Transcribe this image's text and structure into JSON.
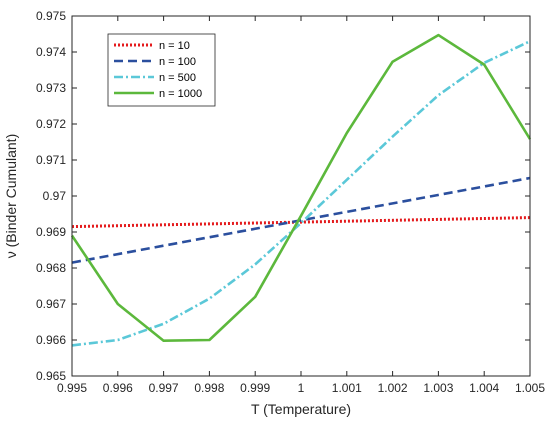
{
  "chart_data": {
    "type": "line",
    "xlabel": "T (Temperature)",
    "ylabel": "ν (Binder Cumulant)",
    "xlim": [
      0.995,
      1.005
    ],
    "ylim": [
      0.965,
      0.975
    ],
    "x_ticks": [
      0.995,
      0.996,
      0.997,
      0.998,
      0.999,
      1,
      1.001,
      1.002,
      1.003,
      1.004,
      1.005
    ],
    "x_tick_labels": [
      "0.995",
      "0.996",
      "0.997",
      "0.998",
      "0.999",
      "1",
      "1.001",
      "1.002",
      "1.003",
      "1.004",
      "1.005"
    ],
    "y_ticks": [
      0.965,
      0.966,
      0.967,
      0.968,
      0.969,
      0.97,
      0.971,
      0.972,
      0.973,
      0.974,
      0.975
    ],
    "y_tick_labels": [
      "0.965",
      "0.966",
      "0.967",
      "0.968",
      "0.969",
      "0.97",
      "0.971",
      "0.972",
      "0.973",
      "0.974",
      "0.975"
    ],
    "grid": false,
    "legend_position": "top-left",
    "series": [
      {
        "name": "n = 10",
        "color": "#e41a1c",
        "style": "dotted",
        "x": [
          0.995,
          1.005
        ],
        "y": [
          0.96915,
          0.9694
        ]
      },
      {
        "name": "n = 100",
        "color": "#2b4f9e",
        "style": "dashed",
        "x": [
          0.995,
          1.005
        ],
        "y": [
          0.96815,
          0.9705
        ]
      },
      {
        "name": "n = 500",
        "color": "#5bc8d8",
        "style": "dashdot",
        "x": [
          0.995,
          0.996,
          0.997,
          0.998,
          0.999,
          1.0,
          1.001,
          1.002,
          1.003,
          1.004,
          1.005
        ],
        "y": [
          0.96585,
          0.966,
          0.96645,
          0.96715,
          0.9681,
          0.96925,
          0.97045,
          0.97165,
          0.9728,
          0.9737,
          0.9743
        ]
      },
      {
        "name": "n = 1000",
        "color": "#5cb83c",
        "style": "solid",
        "x": [
          0.995,
          0.996,
          0.997,
          0.998,
          0.999,
          1.0,
          1.001,
          1.002,
          1.003,
          1.004,
          1.005
        ],
        "y": [
          0.9689,
          0.967,
          0.96598,
          0.966,
          0.9672,
          0.96945,
          0.97175,
          0.97373,
          0.97447,
          0.97365,
          0.97158
        ]
      }
    ]
  }
}
